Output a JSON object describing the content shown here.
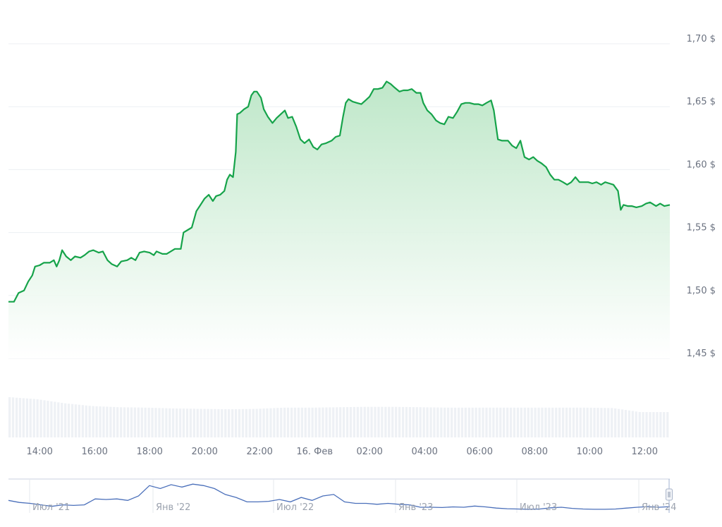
{
  "chart_data": {
    "type": "area",
    "title": "",
    "xlabel": "",
    "ylabel": "",
    "ylim": [
      1.45,
      1.7
    ],
    "y_ticks": [
      "1,45 $",
      "1,50 $",
      "1,55 $",
      "1,60 $",
      "1,65 $",
      "1,70 $"
    ],
    "y_tick_values": [
      1.45,
      1.5,
      1.55,
      1.6,
      1.65,
      1.7
    ],
    "x_ticks": [
      "14:00",
      "16:00",
      "18:00",
      "20:00",
      "22:00",
      "16. Фев",
      "02:00",
      "04:00",
      "06:00",
      "08:00",
      "10:00",
      "12:00"
    ],
    "x_tick_times": [
      "14:00",
      "16:00",
      "18:00",
      "20:00",
      "22:00",
      "00:00",
      "02:00",
      "04:00",
      "06:00",
      "08:00",
      "10:00",
      "12:00"
    ],
    "grid": true,
    "colors": {
      "line": "#16a34a",
      "area_top": "#bbe6c6",
      "volume": "#eef1f5",
      "navigator": "#4a6fba"
    },
    "series": [
      {
        "points": [
          [
            "12:52",
            1.495
          ],
          [
            "13:04",
            1.495
          ],
          [
            "13:14",
            1.502
          ],
          [
            "13:26",
            1.504
          ],
          [
            "13:35",
            1.511
          ],
          [
            "13:44",
            1.516
          ],
          [
            "13:50",
            1.523
          ],
          [
            "14:00",
            1.524
          ],
          [
            "14:09",
            1.526
          ],
          [
            "14:22",
            1.526
          ],
          [
            "14:31",
            1.528
          ],
          [
            "14:37",
            1.523
          ],
          [
            "14:43",
            1.528
          ],
          [
            "14:49",
            1.536
          ],
          [
            "14:58",
            1.531
          ],
          [
            "15:08",
            1.528
          ],
          [
            "15:17",
            1.531
          ],
          [
            "15:29",
            1.53
          ],
          [
            "15:38",
            1.532
          ],
          [
            "15:48",
            1.535
          ],
          [
            "15:57",
            1.536
          ],
          [
            "16:09",
            1.534
          ],
          [
            "16:18",
            1.535
          ],
          [
            "16:28",
            1.528
          ],
          [
            "16:37",
            1.525
          ],
          [
            "16:49",
            1.523
          ],
          [
            "16:58",
            1.527
          ],
          [
            "17:11",
            1.528
          ],
          [
            "17:20",
            1.53
          ],
          [
            "17:29",
            1.528
          ],
          [
            "17:38",
            1.534
          ],
          [
            "17:48",
            1.535
          ],
          [
            "18:00",
            1.534
          ],
          [
            "18:09",
            1.532
          ],
          [
            "18:15",
            1.535
          ],
          [
            "18:28",
            1.533
          ],
          [
            "18:37",
            1.533
          ],
          [
            "18:46",
            1.535
          ],
          [
            "18:55",
            1.537
          ],
          [
            "19:08",
            1.537
          ],
          [
            "19:14",
            1.55
          ],
          [
            "19:23",
            1.552
          ],
          [
            "19:32",
            1.554
          ],
          [
            "19:42",
            1.567
          ],
          [
            "19:51",
            1.572
          ],
          [
            "20:00",
            1.577
          ],
          [
            "20:09",
            1.58
          ],
          [
            "20:18",
            1.575
          ],
          [
            "20:25",
            1.579
          ],
          [
            "20:34",
            1.58
          ],
          [
            "20:43",
            1.583
          ],
          [
            "20:49",
            1.592
          ],
          [
            "20:55",
            1.596
          ],
          [
            "21:02",
            1.594
          ],
          [
            "21:08",
            1.614
          ],
          [
            "21:11",
            1.644
          ],
          [
            "21:17",
            1.645
          ],
          [
            "21:26",
            1.648
          ],
          [
            "21:35",
            1.65
          ],
          [
            "21:42",
            1.659
          ],
          [
            "21:48",
            1.662
          ],
          [
            "21:54",
            1.662
          ],
          [
            "22:03",
            1.657
          ],
          [
            "22:09",
            1.648
          ],
          [
            "22:18",
            1.642
          ],
          [
            "22:28",
            1.637
          ],
          [
            "22:37",
            1.641
          ],
          [
            "22:46",
            1.644
          ],
          [
            "22:55",
            1.647
          ],
          [
            "23:02",
            1.641
          ],
          [
            "23:11",
            1.642
          ],
          [
            "23:20",
            1.634
          ],
          [
            "23:29",
            1.624
          ],
          [
            "23:38",
            1.621
          ],
          [
            "23:48",
            1.624
          ],
          [
            "23:57",
            1.618
          ],
          [
            "00:06",
            1.616
          ],
          [
            "00:15",
            1.62
          ],
          [
            "00:25",
            1.621
          ],
          [
            "00:37",
            1.623
          ],
          [
            "00:46",
            1.626
          ],
          [
            "00:55",
            1.627
          ],
          [
            "01:02",
            1.642
          ],
          [
            "01:08",
            1.653
          ],
          [
            "01:14",
            1.656
          ],
          [
            "01:23",
            1.654
          ],
          [
            "01:32",
            1.653
          ],
          [
            "01:42",
            1.652
          ],
          [
            "01:51",
            1.655
          ],
          [
            "02:00",
            1.658
          ],
          [
            "02:09",
            1.664
          ],
          [
            "02:18",
            1.664
          ],
          [
            "02:28",
            1.665
          ],
          [
            "02:37",
            1.67
          ],
          [
            "02:46",
            1.668
          ],
          [
            "02:55",
            1.665
          ],
          [
            "03:05",
            1.662
          ],
          [
            "03:14",
            1.663
          ],
          [
            "03:23",
            1.663
          ],
          [
            "03:32",
            1.664
          ],
          [
            "03:42",
            1.661
          ],
          [
            "03:51",
            1.661
          ],
          [
            "03:57",
            1.653
          ],
          [
            "04:06",
            1.647
          ],
          [
            "04:15",
            1.644
          ],
          [
            "04:25",
            1.639
          ],
          [
            "04:34",
            1.637
          ],
          [
            "04:43",
            1.636
          ],
          [
            "04:52",
            1.642
          ],
          [
            "05:02",
            1.641
          ],
          [
            "05:11",
            1.646
          ],
          [
            "05:20",
            1.652
          ],
          [
            "05:29",
            1.653
          ],
          [
            "05:38",
            1.653
          ],
          [
            "05:48",
            1.652
          ],
          [
            "05:57",
            1.652
          ],
          [
            "06:06",
            1.651
          ],
          [
            "06:15",
            1.653
          ],
          [
            "06:25",
            1.655
          ],
          [
            "06:31",
            1.647
          ],
          [
            "06:40",
            1.624
          ],
          [
            "06:49",
            1.623
          ],
          [
            "07:02",
            1.623
          ],
          [
            "07:11",
            1.619
          ],
          [
            "07:20",
            1.617
          ],
          [
            "07:29",
            1.623
          ],
          [
            "07:38",
            1.61
          ],
          [
            "07:48",
            1.608
          ],
          [
            "07:57",
            1.61
          ],
          [
            "08:06",
            1.607
          ],
          [
            "08:15",
            1.605
          ],
          [
            "08:25",
            1.602
          ],
          [
            "08:34",
            1.596
          ],
          [
            "08:43",
            1.592
          ],
          [
            "08:52",
            1.592
          ],
          [
            "09:02",
            1.59
          ],
          [
            "09:11",
            1.588
          ],
          [
            "09:20",
            1.59
          ],
          [
            "09:29",
            1.594
          ],
          [
            "09:38",
            1.59
          ],
          [
            "09:48",
            1.59
          ],
          [
            "09:57",
            1.59
          ],
          [
            "10:06",
            1.589
          ],
          [
            "10:15",
            1.59
          ],
          [
            "10:25",
            1.588
          ],
          [
            "10:34",
            1.59
          ],
          [
            "10:43",
            1.589
          ],
          [
            "10:52",
            1.588
          ],
          [
            "11:02",
            1.583
          ],
          [
            "11:08",
            1.568
          ],
          [
            "11:14",
            1.572
          ],
          [
            "11:23",
            1.571
          ],
          [
            "11:32",
            1.571
          ],
          [
            "11:42",
            1.57
          ],
          [
            "11:54",
            1.571
          ],
          [
            "12:03",
            1.573
          ],
          [
            "12:12",
            1.574
          ],
          [
            "12:25",
            1.571
          ],
          [
            "12:34",
            1.573
          ],
          [
            "12:43",
            1.571
          ],
          [
            "12:55",
            1.572
          ]
        ]
      }
    ],
    "volume_levels": [
      1.0,
      0.95,
      0.85,
      0.78,
      0.75,
      0.74,
      0.72,
      0.71,
      0.7,
      0.71,
      0.74,
      0.74,
      0.75,
      0.76,
      0.76,
      0.75,
      0.74,
      0.74,
      0.74,
      0.74,
      0.74,
      0.74,
      0.73,
      0.63,
      0.63
    ],
    "navigator": {
      "x_ticks": [
        "Июл '21",
        "Янв '22",
        "Июл '22",
        "Янв '23",
        "Июл '23",
        "Янв '24"
      ],
      "values": [
        0.35,
        0.28,
        0.25,
        0.2,
        0.15,
        0.2,
        0.18,
        0.2,
        0.4,
        0.38,
        0.4,
        0.35,
        0.5,
        0.85,
        0.75,
        0.88,
        0.8,
        0.9,
        0.85,
        0.75,
        0.55,
        0.45,
        0.3,
        0.3,
        0.32,
        0.38,
        0.3,
        0.45,
        0.35,
        0.5,
        0.55,
        0.3,
        0.25,
        0.25,
        0.22,
        0.25,
        0.22,
        0.2,
        0.12,
        0.12,
        0.11,
        0.13,
        0.12,
        0.16,
        0.13,
        0.09,
        0.07,
        0.06,
        0.05,
        0.06,
        0.1,
        0.12,
        0.08,
        0.06,
        0.05,
        0.05,
        0.06,
        0.09,
        0.12,
        0.14,
        0.12,
        0.14
      ]
    }
  }
}
